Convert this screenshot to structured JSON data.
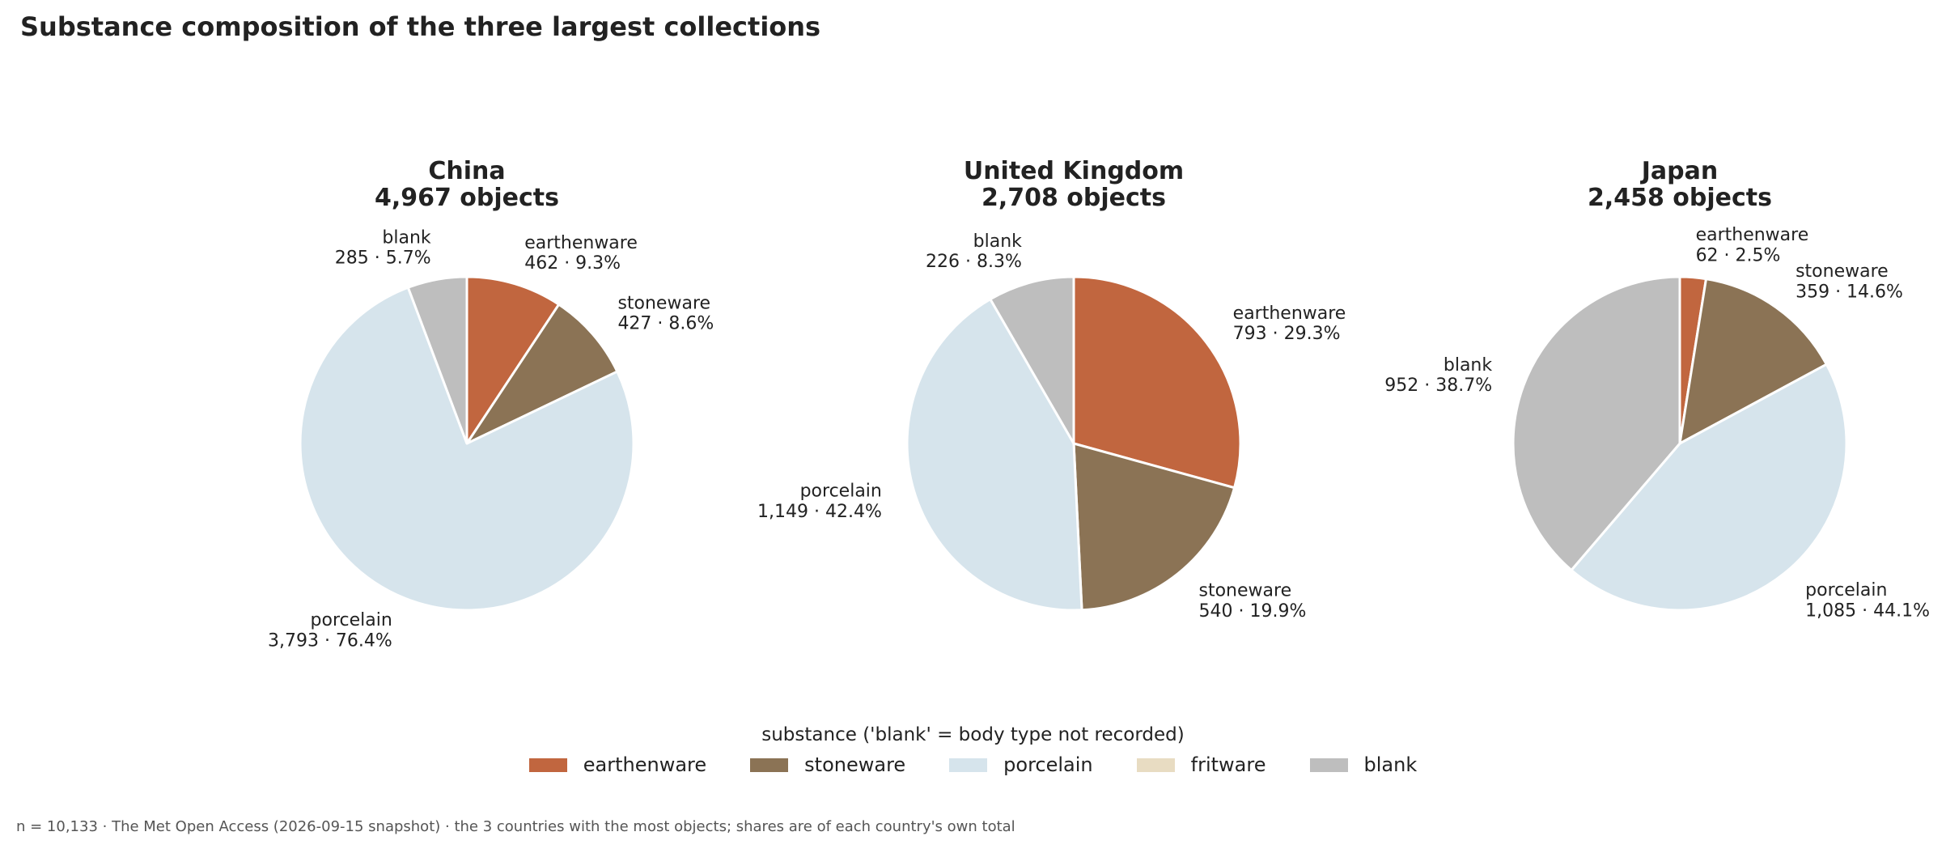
{
  "title": "Substance composition of the three largest collections",
  "colors": {
    "earthenware": "#c1663f",
    "stoneware": "#8b7355",
    "porcelain": "#d6e4ec",
    "fritware": "#e8dcc2",
    "blank": "#bebebe"
  },
  "chart_data": [
    {
      "type": "pie",
      "country": "China",
      "total_label": "4,967 objects",
      "slices": [
        {
          "name": "earthenware",
          "count": 462,
          "count_label": "462",
          "pct_label": "9.3%"
        },
        {
          "name": "stoneware",
          "count": 427,
          "count_label": "427",
          "pct_label": "8.6%"
        },
        {
          "name": "porcelain",
          "count": 3793,
          "count_label": "3,793",
          "pct_label": "76.4%"
        },
        {
          "name": "blank",
          "count": 285,
          "count_label": "285",
          "pct_label": "5.7%"
        }
      ]
    },
    {
      "type": "pie",
      "country": "United Kingdom",
      "total_label": "2,708 objects",
      "slices": [
        {
          "name": "earthenware",
          "count": 793,
          "count_label": "793",
          "pct_label": "29.3%"
        },
        {
          "name": "stoneware",
          "count": 540,
          "count_label": "540",
          "pct_label": "19.9%"
        },
        {
          "name": "porcelain",
          "count": 1149,
          "count_label": "1,149",
          "pct_label": "42.4%"
        },
        {
          "name": "blank",
          "count": 226,
          "count_label": "226",
          "pct_label": "8.3%"
        }
      ]
    },
    {
      "type": "pie",
      "country": "Japan",
      "total_label": "2,458 objects",
      "slices": [
        {
          "name": "earthenware",
          "count": 62,
          "count_label": "62",
          "pct_label": "2.5%"
        },
        {
          "name": "stoneware",
          "count": 359,
          "count_label": "359",
          "pct_label": "14.6%"
        },
        {
          "name": "porcelain",
          "count": 1085,
          "count_label": "1,085",
          "pct_label": "44.1%"
        },
        {
          "name": "blank",
          "count": 952,
          "count_label": "952",
          "pct_label": "38.7%"
        }
      ]
    }
  ],
  "legend": {
    "title": "substance ('blank' = body type not recorded)",
    "items": [
      "earthenware",
      "stoneware",
      "porcelain",
      "fritware",
      "blank"
    ]
  },
  "footer": "n = 10,133 · The Met Open Access (2026-09-15 snapshot) · the 3 countries with the most objects; shares are of each country's own total"
}
